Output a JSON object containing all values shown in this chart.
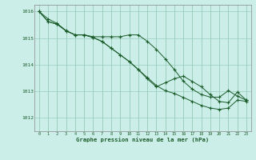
{
  "title": "Graphe pression niveau de la mer (hPa)",
  "bg_color": "#cceee8",
  "grid_color": "#99ccbb",
  "line_color": "#1a5c2a",
  "marker_color": "#1a5c2a",
  "xlim": [
    -0.5,
    23.5
  ],
  "ylim": [
    1011.5,
    1016.25
  ],
  "yticks": [
    1012,
    1013,
    1014,
    1015,
    1016
  ],
  "xticks": [
    0,
    1,
    2,
    3,
    4,
    5,
    6,
    7,
    8,
    9,
    10,
    11,
    12,
    13,
    14,
    15,
    16,
    17,
    18,
    19,
    20,
    21,
    22,
    23
  ],
  "series1": [
    1016.0,
    1015.72,
    1015.55,
    1015.28,
    1015.12,
    1015.12,
    1015.05,
    1015.05,
    1015.05,
    1015.05,
    1015.12,
    1015.12,
    1014.88,
    1014.58,
    1014.22,
    1013.82,
    1013.38,
    1013.08,
    1012.88,
    1012.78,
    1012.78,
    1013.02,
    1012.82,
    1012.66
  ],
  "series2": [
    1016.0,
    1015.62,
    1015.52,
    1015.27,
    1015.12,
    1015.12,
    1015.02,
    1014.87,
    1014.62,
    1014.37,
    1014.12,
    1013.82,
    1013.52,
    1013.22,
    1013.02,
    1012.92,
    1012.77,
    1012.62,
    1012.47,
    1012.37,
    1012.32,
    1012.37,
    1012.67,
    1012.62
  ],
  "series3": [
    1016.0,
    1015.62,
    1015.52,
    1015.27,
    1015.12,
    1015.12,
    1015.02,
    1014.87,
    1014.62,
    1014.37,
    1014.12,
    1013.82,
    1013.47,
    1013.17,
    1013.32,
    1013.47,
    1013.57,
    1013.37,
    1013.17,
    1012.87,
    1012.62,
    1012.57,
    1012.97,
    1012.67
  ]
}
